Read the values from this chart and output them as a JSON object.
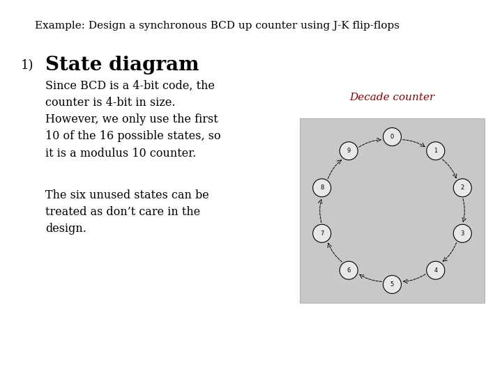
{
  "title": "Example: Design a synchronous BCD up counter using J-K flip-flops",
  "title_fontsize": 11,
  "title_color": "#000000",
  "background_color": "#ffffff",
  "number_label": "1)",
  "number_fontsize": 13,
  "heading": "State diagram",
  "heading_fontsize": 20,
  "heading_fontweight": "bold",
  "body_text_1": "Since BCD is a 4-bit code, the\ncounter is 4-bit in size.\nHowever, we only use the first\n10 of the 16 possible states, so\nit is a modulus 10 counter.",
  "body_text_2": "The six unused states can be\ntreated as don’t care in the\ndesign.",
  "body_fontsize": 11.5,
  "diagram_caption": "Decade counter",
  "diagram_caption_color": "#8b0000",
  "diagram_caption_fontsize": 11,
  "diagram_bg_color": "#c8c8c8",
  "state_labels": [
    "0",
    "1",
    "2",
    "3",
    "4",
    "5",
    "6",
    "7",
    "8",
    "9"
  ],
  "num_states": 10,
  "node_color": "#e8e8e8",
  "node_edge_color": "#000000",
  "arrow_color": "#000000"
}
